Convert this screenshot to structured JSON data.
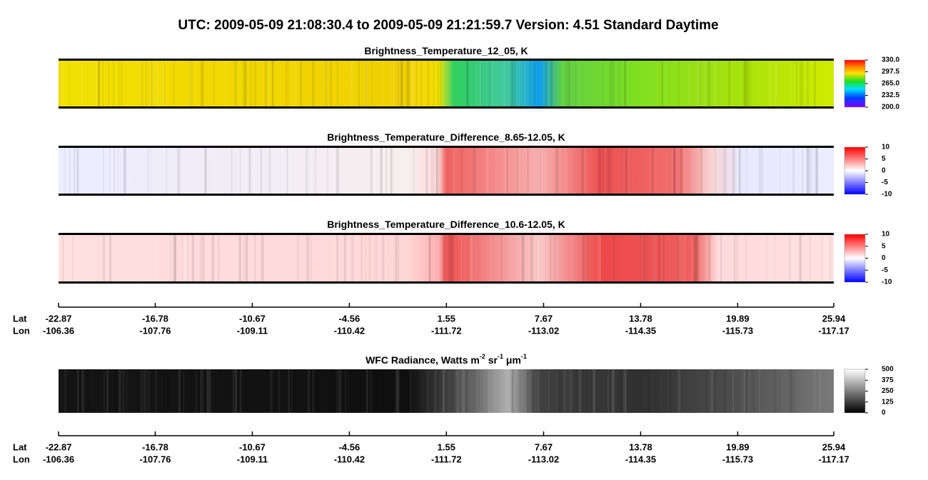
{
  "title": "UTC:  2009-05-09   21:08:30.4  to  2009-05-09   21:21:59.7   Version: 4.51  Standard Daytime",
  "panels": [
    {
      "title": [
        "Brightness_Temperature_12_05, K"
      ],
      "scheme": "rainbow",
      "lim": [
        200,
        330
      ],
      "ticks": [
        {
          "value": 330,
          "label": "330.0"
        },
        {
          "value": 297.5,
          "label": "297.5"
        },
        {
          "value": 265,
          "label": "265.0"
        },
        {
          "value": 232.5,
          "label": "232.5"
        },
        {
          "value": 200,
          "label": "200.0"
        }
      ]
    },
    {
      "title": [
        "Brightness_Temperature_Difference_8.65-12.05, K"
      ],
      "scheme": "diverging",
      "lim": [
        -10,
        10
      ],
      "ticks": [
        10,
        5,
        0,
        -5,
        -10
      ]
    },
    {
      "title": [
        "Brightness_Temperature_Difference_10.6-12.05, K"
      ],
      "scheme": "diverging",
      "lim": [
        -10,
        10
      ],
      "ticks": [
        10,
        5,
        0,
        -5,
        -10
      ]
    },
    {
      "title": [
        "WFC Radiance, Watts m",
        "-2",
        " sr",
        "-1",
        " μm",
        "-1"
      ],
      "scheme": "gray",
      "lim": [
        0,
        500
      ],
      "ticks": [
        500,
        375,
        250,
        125,
        0
      ]
    }
  ],
  "axis": {
    "row_labels": [
      "Lat",
      "Lon"
    ],
    "xlim": [
      -22.87,
      25.94
    ],
    "lat": [
      -22.87,
      -16.78,
      -10.67,
      -4.56,
      1.55,
      7.67,
      13.78,
      19.89,
      25.94
    ],
    "lon": [
      -106.36,
      -107.76,
      -109.11,
      -110.42,
      -111.72,
      -113.02,
      -114.35,
      -115.73,
      -117.17
    ]
  }
}
